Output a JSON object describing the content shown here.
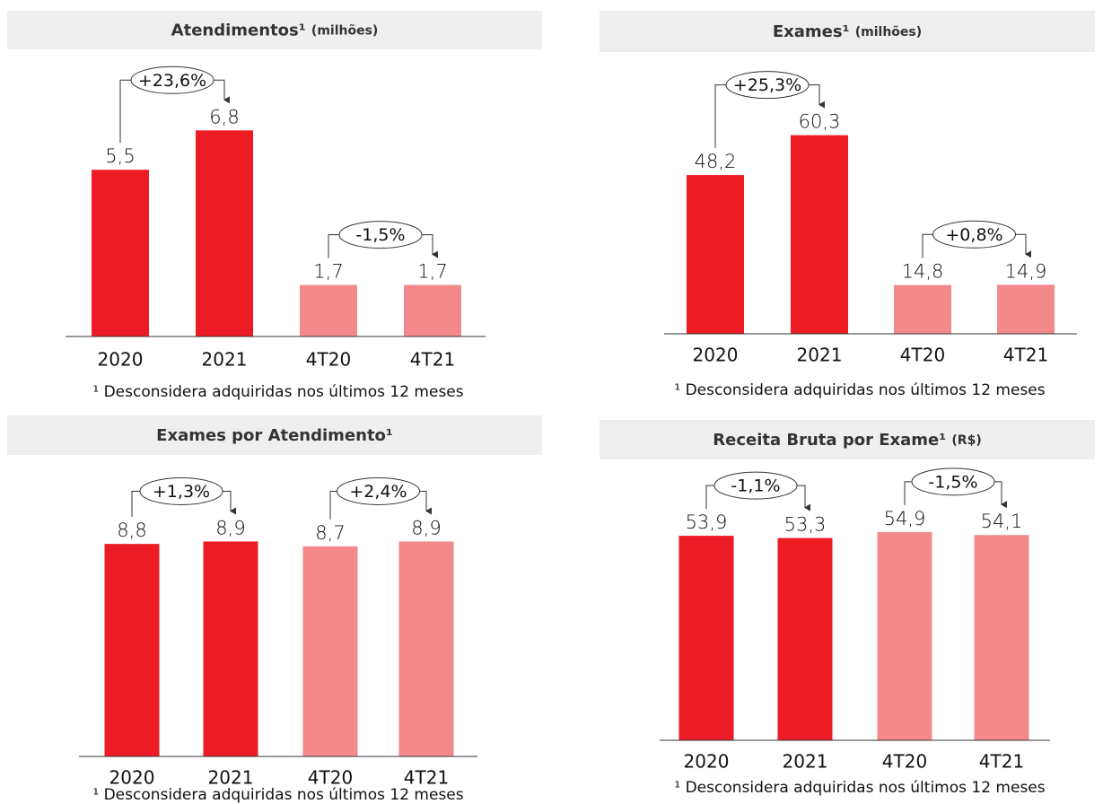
{
  "chart_data": [
    {
      "type": "bar",
      "title": "Atendimentos¹",
      "subtitle": "(milhões)",
      "categories": [
        "2020",
        "2021",
        "4T20",
        "4T21"
      ],
      "values": [
        5.5,
        6.8,
        1.7,
        1.7
      ],
      "value_labels": [
        "5,5",
        "6,8",
        "1,7",
        "1,7"
      ],
      "colors": [
        "#ed1c24",
        "#ed1c24",
        "#f4898c",
        "#f4898c"
      ],
      "ylim": [
        0,
        9
      ],
      "annotations": [
        "+23,6%",
        "-1,5%"
      ],
      "note": "¹ Desconsidera adquiridas nos últimos 12 meses"
    },
    {
      "type": "bar",
      "title": "Exames¹",
      "subtitle": "(milhões)",
      "categories": [
        "2020",
        "2021",
        "4T20",
        "4T21"
      ],
      "values": [
        48.2,
        60.3,
        14.8,
        14.9
      ],
      "value_labels": [
        "48,2",
        "60,3",
        "14,8",
        "14,9"
      ],
      "colors": [
        "#ed1c24",
        "#ed1c24",
        "#f4898c",
        "#f4898c"
      ],
      "ylim": [
        0,
        85
      ],
      "annotations": [
        "+25,3%",
        "+0,8%"
      ],
      "note": "¹ Desconsidera adquiridas nos últimos 12 meses"
    },
    {
      "type": "bar",
      "title": "Exames por Atendimento¹",
      "categories": [
        "2020",
        "2021",
        "4T20",
        "4T21"
      ],
      "values": [
        8.8,
        8.9,
        8.7,
        8.9
      ],
      "value_labels": [
        "8,8",
        "8,9",
        "8,7",
        "8,9"
      ],
      "colors": [
        "#ed1c24",
        "#ed1c24",
        "#f4898c",
        "#f4898c"
      ],
      "ylim": [
        0,
        12
      ],
      "annotations": [
        "+1,3%",
        "+2,4%"
      ],
      "note": "¹ Desconsidera adquiridas nos últimos 12 meses"
    },
    {
      "type": "bar",
      "title": "Receita Bruta por Exame¹",
      "subtitle": "(R$)",
      "categories": [
        "2020",
        "2021",
        "4T20",
        "4T21"
      ],
      "values": [
        53.9,
        53.3,
        54.9,
        54.1
      ],
      "value_labels": [
        "53,9",
        "53,3",
        "54,9",
        "54,1"
      ],
      "colors": [
        "#ed1c24",
        "#ed1c24",
        "#f4898c",
        "#f4898c"
      ],
      "ylim": [
        0,
        70
      ],
      "annotations": [
        "-1,1%",
        "-1,5%"
      ],
      "note": "¹ Desconsidera adquiridas nos últimos 12 meses"
    }
  ]
}
